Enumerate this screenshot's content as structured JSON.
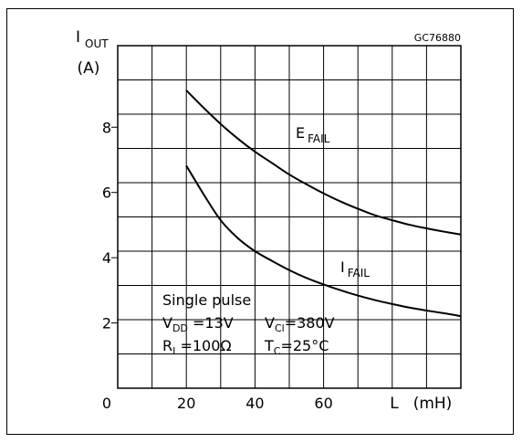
{
  "figure_code": "GC76880",
  "y_axis": {
    "symbol": "I",
    "subscript": "OUT",
    "unit": "(A)"
  },
  "x_axis": {
    "symbol": "L",
    "unit": "(mH)"
  },
  "conditions": {
    "line1": "Single pulse",
    "vdd": {
      "symbol": "V",
      "subscript": "DD",
      "value": " =13V"
    },
    "vcl": {
      "symbol": "V",
      "subscript": "Cl",
      "value": "=380V"
    },
    "ri": {
      "symbol": "R",
      "subscript": "I",
      "value": " =100Ω"
    },
    "tc": {
      "symbol": "T",
      "subscript": "C",
      "value": "=25°C"
    }
  },
  "chart_data": {
    "type": "line",
    "title": "",
    "xlabel": "L (mH)",
    "ylabel": "I OUT (A)",
    "xlim": [
      0,
      100
    ],
    "ylim": [
      0,
      10.5
    ],
    "x_ticks": [
      0,
      20,
      40,
      60
    ],
    "y_ticks": [
      2,
      4,
      6,
      8
    ],
    "grid": true,
    "series": [
      {
        "name": "E",
        "label_main": "E",
        "label_sub": "FAIL",
        "color": "#000000",
        "x": [
          20,
          25,
          30,
          35,
          40,
          45,
          50,
          55,
          60,
          65,
          70,
          75,
          80,
          85,
          90,
          95,
          100
        ],
        "y": [
          9.13,
          8.6,
          8.1,
          7.65,
          7.25,
          6.9,
          6.55,
          6.25,
          5.97,
          5.72,
          5.5,
          5.3,
          5.15,
          5.01,
          4.9,
          4.8,
          4.71
        ]
      },
      {
        "name": "I",
        "label_main": "I",
        "label_sub": "FAIL",
        "color": "#000000",
        "x": [
          20,
          25,
          30,
          35,
          40,
          45,
          50,
          55,
          60,
          65,
          70,
          75,
          80,
          85,
          90,
          95,
          100
        ],
        "y": [
          6.82,
          5.95,
          5.15,
          4.6,
          4.2,
          3.9,
          3.62,
          3.38,
          3.18,
          3.0,
          2.84,
          2.7,
          2.58,
          2.47,
          2.38,
          2.3,
          2.21
        ]
      }
    ]
  }
}
